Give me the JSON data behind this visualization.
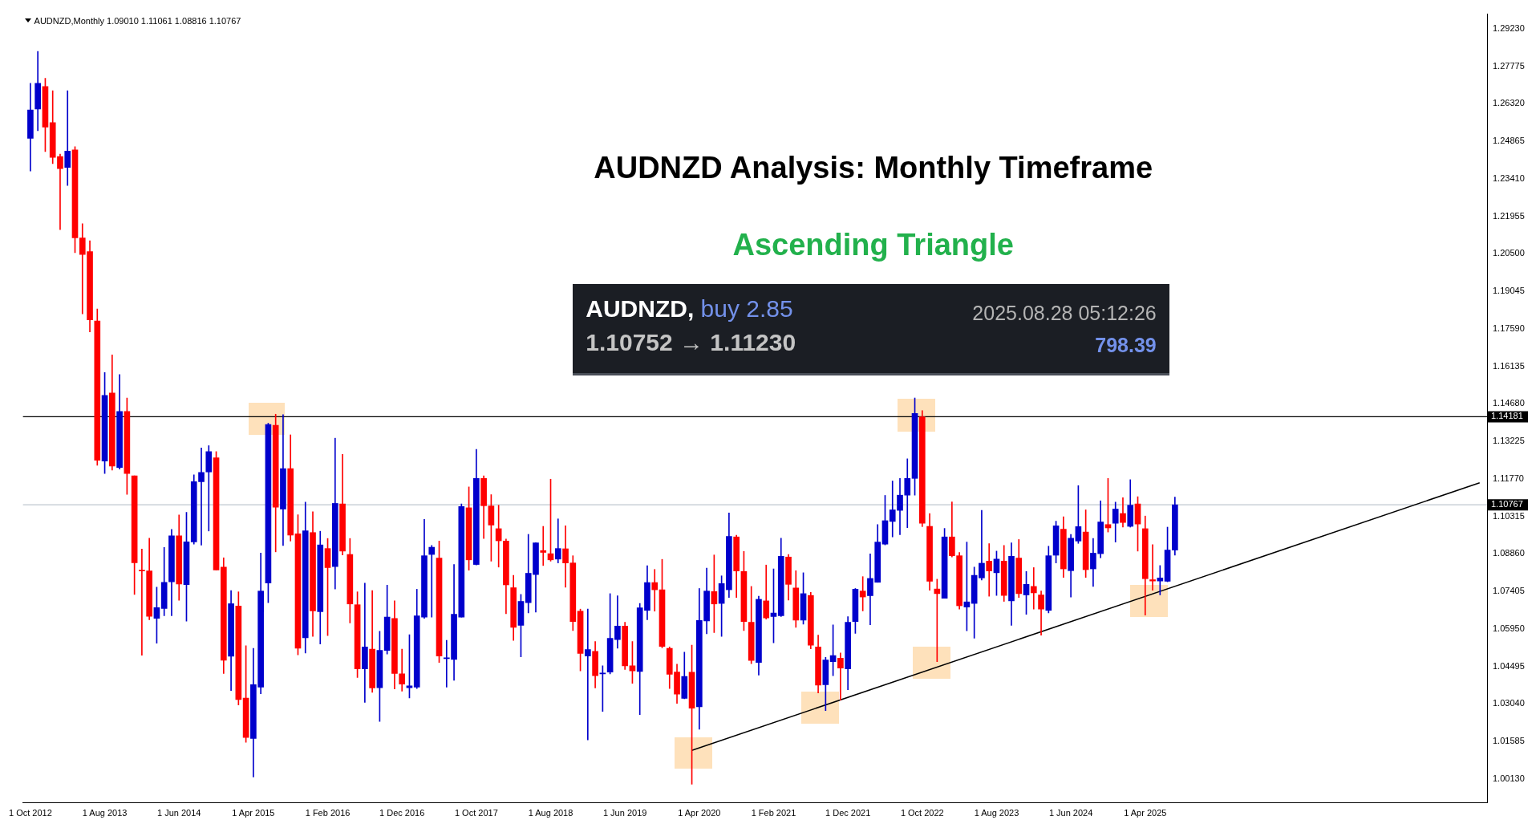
{
  "chart_data": {
    "type": "candlestick",
    "title": "AUDNZD Analysis: Monthly Timeframe",
    "subtitle": "Ascending Triangle",
    "annotations": [
      "AUDNZD,Monthly 1.09010 1.11061 1.08816 1.10767",
      "AUDNZD,",
      "buy 2.85",
      "1.10752 → 1.11230",
      "2025.08.28 05:12:26",
      "798.39"
    ],
    "colors": [
      "#0000cc",
      "#0000cc",
      "#ff0000",
      "#ff0000",
      "#ff0000",
      "#0000cc",
      "#ff0000",
      "#ff0000",
      "#ff0000",
      "#ff0000",
      "#0000cc",
      "#ff0000",
      "#0000cc",
      "#ff0000",
      "#ff0000",
      "#ff0000",
      "#ff0000",
      "#0000cc",
      "#0000cc",
      "#0000cc",
      "#ff0000",
      "#0000cc",
      "#0000cc",
      "#0000cc",
      "#0000cc",
      "#ff0000",
      "#ff0000",
      "#0000cc",
      "#ff0000",
      "#ff0000",
      "#0000cc",
      "#0000cc",
      "#0000cc",
      "#ff0000",
      "#0000cc",
      "#ff0000",
      "#ff0000",
      "#0000cc",
      "#ff0000",
      "#0000cc",
      "#ff0000",
      "#0000cc",
      "#ff0000",
      "#ff0000",
      "#ff0000",
      "#0000cc",
      "#ff0000",
      "#0000cc",
      "#0000cc",
      "#ff0000",
      "#ff0000",
      "#0000cc",
      "#0000cc",
      "#0000cc",
      "#0000cc",
      "#ff0000",
      "#0000cc",
      "#0000cc",
      "#0000cc",
      "#ff0000",
      "#0000cc",
      "#ff0000",
      "#ff0000",
      "#ff0000",
      "#ff0000",
      "#ff0000",
      "#0000cc",
      "#0000cc",
      "#0000cc",
      "#ff0000",
      "#ff0000",
      "#0000cc",
      "#ff0000",
      "#ff0000",
      "#ff0000",
      "#0000cc",
      "#ff0000",
      "#0000cc",
      "#0000cc",
      "#0000cc",
      "#ff0000",
      "#ff0000",
      "#0000cc",
      "#0000cc",
      "#ff0000",
      "#ff0000",
      "#ff0000",
      "#ff0000",
      "#0000cc",
      "#ff0000",
      "#0000cc",
      "#0000cc",
      "#ff0000",
      "#0000cc",
      "#0000cc",
      "#ff0000",
      "#ff0000",
      "#ff0000",
      "#0000cc",
      "#ff0000",
      "#0000cc",
      "#0000cc",
      "#ff0000",
      "#ff0000",
      "#0000cc",
      "#ff0000",
      "#ff0000",
      "#0000cc",
      "#0000cc",
      "#ff0000",
      "#0000cc",
      "#0000cc",
      "#ff0000",
      "#0000cc",
      "#0000cc",
      "#0000cc",
      "#0000cc",
      "#0000cc",
      "#0000cc",
      "#0000cc",
      "#ff0000",
      "#ff0000",
      "#ff0000",
      "#0000cc",
      "#ff0000",
      "#ff0000",
      "#0000cc",
      "#0000cc",
      "#0000cc",
      "#ff0000",
      "#0000cc",
      "#ff0000",
      "#0000cc",
      "#ff0000",
      "#0000cc",
      "#ff0000",
      "#ff0000",
      "#0000cc",
      "#0000cc",
      "#ff0000",
      "#0000cc",
      "#0000cc",
      "#ff0000",
      "#0000cc",
      "#0000cc",
      "#ff0000",
      "#0000cc",
      "#ff0000",
      "#0000cc",
      "#ff0000",
      "#ff0000",
      "#ff0000",
      "#0000cc",
      "#0000cc",
      "#0000cc"
    ],
    "x": [
      "2012-10",
      "2012-11",
      "2012-12",
      "2013-01",
      "2013-02",
      "2013-03",
      "2013-04",
      "2013-05",
      "2013-06",
      "2013-07",
      "2013-08",
      "2013-09",
      "2013-10",
      "2013-11",
      "2013-12",
      "2014-01",
      "2014-02",
      "2014-03",
      "2014-04",
      "2014-05",
      "2014-06",
      "2014-07",
      "2014-08",
      "2014-09",
      "2014-10",
      "2014-11",
      "2014-12",
      "2015-01",
      "2015-02",
      "2015-03",
      "2015-04",
      "2015-05",
      "2015-06",
      "2015-07",
      "2015-08",
      "2015-09",
      "2015-10",
      "2015-11",
      "2015-12",
      "2016-01",
      "2016-02",
      "2016-03",
      "2016-04",
      "2016-05",
      "2016-06",
      "2016-07",
      "2016-08",
      "2016-09",
      "2016-10",
      "2016-11",
      "2016-12",
      "2017-01",
      "2017-02",
      "2017-03",
      "2017-04",
      "2017-05",
      "2017-06",
      "2017-07",
      "2017-08",
      "2017-09",
      "2017-10",
      "2017-11",
      "2017-12",
      "2018-01",
      "2018-02",
      "2018-03",
      "2018-04",
      "2018-05",
      "2018-06",
      "2018-07",
      "2018-08",
      "2018-09",
      "2018-10",
      "2018-11",
      "2018-12",
      "2019-01",
      "2019-02",
      "2019-03",
      "2019-04",
      "2019-05",
      "2019-06",
      "2019-07",
      "2019-08",
      "2019-09",
      "2019-10",
      "2019-11",
      "2019-12",
      "2020-01",
      "2020-02",
      "2020-03",
      "2020-04",
      "2020-05",
      "2020-06",
      "2020-07",
      "2020-08",
      "2020-09",
      "2020-10",
      "2020-11",
      "2020-12",
      "2021-01",
      "2021-02",
      "2021-03",
      "2021-04",
      "2021-05",
      "2021-06",
      "2021-07",
      "2021-08",
      "2021-09",
      "2021-10",
      "2021-11",
      "2021-12",
      "2022-01",
      "2022-02",
      "2022-03",
      "2022-04",
      "2022-05",
      "2022-06",
      "2022-07",
      "2022-08",
      "2022-09",
      "2022-10",
      "2022-11",
      "2022-12",
      "2023-01",
      "2023-02",
      "2023-03",
      "2023-04",
      "2023-05",
      "2023-06",
      "2023-07",
      "2023-08",
      "2023-09",
      "2023-10",
      "2023-11",
      "2023-12",
      "2024-01",
      "2024-02",
      "2024-03",
      "2024-04",
      "2024-05",
      "2024-06",
      "2024-07",
      "2024-08",
      "2024-09",
      "2024-10",
      "2024-11",
      "2024-12",
      "2025-01",
      "2025-02",
      "2025-03",
      "2025-04",
      "2025-05",
      "2025-06",
      "2025-07",
      "2025-08"
    ],
    "ohlc": [
      [
        1.2498,
        1.2712,
        1.2371,
        1.2608
      ],
      [
        1.2612,
        1.2835,
        1.2528,
        1.2712
      ],
      [
        1.2699,
        1.2731,
        1.2447,
        1.2542
      ],
      [
        1.2559,
        1.2683,
        1.24,
        1.2424
      ],
      [
        1.2428,
        1.2437,
        1.2144,
        1.2381
      ],
      [
        1.2385,
        1.2683,
        1.2315,
        1.2449
      ],
      [
        1.2453,
        1.2466,
        1.2055,
        1.2112
      ],
      [
        1.2112,
        1.2167,
        1.1817,
        1.2048
      ],
      [
        1.2059,
        1.2101,
        1.1747,
        1.1794
      ],
      [
        1.179,
        1.1836,
        1.123,
        1.1249
      ],
      [
        1.1246,
        1.159,
        1.1198,
        1.1501
      ],
      [
        1.151,
        1.1658,
        1.1211,
        1.1227
      ],
      [
        1.1221,
        1.1582,
        1.1215,
        1.1439
      ],
      [
        1.1439,
        1.1491,
        1.1117,
        1.1198
      ],
      [
        1.1189,
        1.1189,
        1.0729,
        1.0852
      ],
      [
        1.082,
        1.0905,
        1.0493,
        1.082
      ],
      [
        1.082,
        1.0947,
        1.0631,
        1.0644
      ],
      [
        1.0636,
        1.0757,
        1.054,
        1.0678
      ],
      [
        1.0674,
        1.0911,
        1.0646,
        1.0776
      ],
      [
        1.0778,
        1.0981,
        1.0646,
        1.0956
      ],
      [
        1.0956,
        1.1037,
        1.0706,
        1.0769
      ],
      [
        1.0767,
        1.1047,
        1.0625,
        1.0933
      ],
      [
        1.0933,
        1.1193,
        1.0924,
        1.1166
      ],
      [
        1.1166,
        1.1297,
        1.092,
        1.1202
      ],
      [
        1.1204,
        1.1306,
        1.0975,
        1.1283
      ],
      [
        1.1259,
        1.1283,
        1.0824,
        1.0824
      ],
      [
        1.0835,
        1.0871,
        1.0422,
        1.0474
      ],
      [
        1.0489,
        1.0744,
        1.0356,
        1.0693
      ],
      [
        1.0684,
        1.0739,
        1.03,
        1.0321
      ],
      [
        1.0327,
        1.053,
        1.0155,
        1.0174
      ],
      [
        1.017,
        1.052,
        1.0021,
        1.0379
      ],
      [
        1.0369,
        1.0889,
        1.0344,
        1.0742
      ],
      [
        1.0773,
        1.1393,
        1.0697,
        1.1388
      ],
      [
        1.1385,
        1.1428,
        1.0894,
        1.1067
      ],
      [
        1.106,
        1.1426,
        1.0919,
        1.1217
      ],
      [
        1.1217,
        1.1348,
        1.0936,
        1.0959
      ],
      [
        1.0964,
        1.1038,
        1.0495,
        1.052
      ],
      [
        1.0561,
        1.1087,
        1.0502,
        1.0976
      ],
      [
        1.0969,
        1.105,
        1.0566,
        1.0665
      ],
      [
        1.0662,
        1.0974,
        1.0537,
        1.0921
      ],
      [
        1.0907,
        1.0946,
        1.0569,
        1.0833
      ],
      [
        1.0837,
        1.1335,
        1.075,
        1.1082
      ],
      [
        1.108,
        1.1272,
        1.0882,
        1.0897
      ],
      [
        1.0884,
        1.0946,
        1.0618,
        1.0692
      ],
      [
        1.0689,
        1.0739,
        1.0407,
        1.044
      ],
      [
        1.044,
        1.0773,
        1.031,
        1.0525
      ],
      [
        1.0517,
        1.0744,
        1.0349,
        1.0366
      ],
      [
        1.0367,
        1.0586,
        1.0236,
        1.0512
      ],
      [
        1.0512,
        1.0765,
        1.0498,
        1.0641
      ],
      [
        1.0636,
        1.0704,
        1.0362,
        1.0422
      ],
      [
        1.0421,
        1.0517,
        1.0354,
        1.0381
      ],
      [
        1.0367,
        1.0573,
        1.0327,
        1.0374
      ],
      [
        1.0369,
        1.0749,
        1.0364,
        1.0646
      ],
      [
        1.0641,
        1.102,
        1.0636,
        1.0879
      ],
      [
        1.0884,
        1.0919,
        1.0641,
        1.0912
      ],
      [
        1.087,
        1.0936,
        1.0465,
        1.049
      ],
      [
        1.048,
        1.0551,
        1.0369,
        1.0482
      ],
      [
        1.0477,
        1.0845,
        1.0396,
        1.0652
      ],
      [
        1.0641,
        1.108,
        1.0641,
        1.107
      ],
      [
        1.1065,
        1.1146,
        1.0823,
        1.0863
      ],
      [
        1.0845,
        1.1292,
        1.0843,
        1.1179
      ],
      [
        1.1179,
        1.1189,
        1.0946,
        1.1073
      ],
      [
        1.1072,
        1.1116,
        1.0858,
        1.0998
      ],
      [
        1.0984,
        1.1075,
        1.0835,
        1.0937
      ],
      [
        1.0936,
        1.0944,
        1.0654,
        1.0766
      ],
      [
        1.0755,
        1.0803,
        1.0551,
        1.0601
      ],
      [
        1.0609,
        1.0729,
        1.0487,
        1.0702
      ],
      [
        1.0697,
        1.0962,
        1.0657,
        1.0811
      ],
      [
        1.0806,
        1.0929,
        1.066,
        1.0929
      ],
      [
        1.0899,
        1.0993,
        1.0841,
        1.0892
      ],
      [
        1.0887,
        1.1176,
        1.0858,
        1.0863
      ],
      [
        1.0866,
        1.1022,
        1.0851,
        1.0907
      ],
      [
        1.0906,
        1.0995,
        1.0757,
        1.0851
      ],
      [
        1.0851,
        1.0879,
        1.0589,
        1.0624
      ],
      [
        1.0664,
        1.0672,
        1.0432,
        1.05
      ],
      [
        1.049,
        1.0672,
        1.0165,
        1.0515
      ],
      [
        1.0508,
        1.0546,
        1.0366,
        1.0414
      ],
      [
        1.0421,
        1.0452,
        1.0275,
        1.0423
      ],
      [
        1.0428,
        1.0732,
        1.0421,
        1.0559
      ],
      [
        1.0554,
        1.0724,
        1.052,
        1.0606
      ],
      [
        1.0606,
        1.0621,
        1.0438,
        1.0452
      ],
      [
        1.0452,
        1.0546,
        1.0384,
        1.0432
      ],
      [
        1.043,
        1.0694,
        1.0263,
        1.0677
      ],
      [
        1.0667,
        1.084,
        1.0631,
        1.0775
      ],
      [
        1.0775,
        1.0826,
        1.0664,
        1.0747
      ],
      [
        1.0747,
        1.0865,
        1.0522,
        1.0527
      ],
      [
        1.052,
        1.0525,
        1.0364,
        1.0419
      ],
      [
        1.0428,
        1.0458,
        1.0306,
        1.0342
      ],
      [
        1.0326,
        1.0505,
        1.0324,
        1.0411
      ],
      [
        1.0427,
        1.0532,
        0.9993,
        1.0288
      ],
      [
        1.0293,
        1.0752,
        1.0206,
        1.0628
      ],
      [
        1.0626,
        1.0831,
        1.0576,
        1.0742
      ],
      [
        1.074,
        1.0882,
        1.0581,
        1.0692
      ],
      [
        1.0694,
        1.0801,
        1.0566,
        1.0771
      ],
      [
        1.0747,
        1.1045,
        1.0717,
        1.0954
      ],
      [
        1.0952,
        1.0959,
        1.0717,
        1.082
      ],
      [
        1.0818,
        1.0896,
        1.0589,
        1.0624
      ],
      [
        1.0621,
        1.076,
        1.046,
        1.0473
      ],
      [
        1.0465,
        1.0722,
        1.0416,
        1.071
      ],
      [
        1.0704,
        1.0843,
        1.0633,
        1.0638
      ],
      [
        1.0643,
        1.0828,
        1.0541,
        1.0657
      ],
      [
        1.0646,
        1.0947,
        1.0643,
        1.0877
      ],
      [
        1.0874,
        1.0884,
        1.0707,
        1.0768
      ],
      [
        1.0754,
        1.0821,
        1.0601,
        1.0629
      ],
      [
        1.0629,
        1.0813,
        1.0614,
        1.0732
      ],
      [
        1.0725,
        1.0737,
        1.0518,
        1.0532
      ],
      [
        1.0525,
        1.0571,
        1.0347,
        1.0377
      ],
      [
        1.0379,
        1.0485,
        1.0278,
        1.0475
      ],
      [
        1.0468,
        1.0611,
        1.0414,
        1.0492
      ],
      [
        1.0482,
        1.0502,
        1.0319,
        1.0443
      ],
      [
        1.044,
        1.0643,
        1.0359,
        1.0621
      ],
      [
        1.0624,
        1.0752,
        1.0578,
        1.0749
      ],
      [
        1.0742,
        1.0798,
        1.0665,
        1.0719
      ],
      [
        1.0724,
        1.0886,
        1.0611,
        1.0791
      ],
      [
        1.0776,
        1.1,
        1.0776,
        1.0932
      ],
      [
        1.0924,
        1.1113,
        1.0921,
        1.1015
      ],
      [
        1.1012,
        1.1169,
        1.0952,
        1.1057
      ],
      [
        1.1055,
        1.1179,
        1.0961,
        1.1114
      ],
      [
        1.1114,
        1.1255,
        1.0988,
        1.1179
      ],
      [
        1.1179,
        1.1491,
        1.1114,
        1.1431
      ],
      [
        1.1418,
        1.1442,
        1.0992,
        1.1005
      ],
      [
        1.0993,
        1.1043,
        1.0745,
        1.078
      ],
      [
        1.075,
        1.0788,
        1.0468,
        1.0732
      ],
      [
        1.0714,
        1.0985,
        1.0714,
        1.0952
      ],
      [
        1.0952,
        1.1088,
        1.0874,
        1.0879
      ],
      [
        1.0879,
        1.0892,
        1.0672,
        1.0685
      ],
      [
        1.068,
        1.0932,
        1.0588,
        1.07
      ],
      [
        1.0694,
        1.0835,
        1.0559,
        1.0803
      ],
      [
        1.0793,
        1.1055,
        1.0785,
        1.085
      ],
      [
        1.0858,
        1.0926,
        1.0722,
        1.082
      ],
      [
        1.0813,
        1.0897,
        1.0725,
        1.0866
      ],
      [
        1.0858,
        1.0919,
        1.0702,
        1.0725
      ],
      [
        1.0704,
        1.0929,
        1.0609,
        1.0877
      ],
      [
        1.087,
        1.0942,
        1.0717,
        1.0732
      ],
      [
        1.0727,
        1.0818,
        1.0652,
        1.0768
      ],
      [
        1.076,
        1.0833,
        1.0672,
        1.0735
      ],
      [
        1.0727,
        1.0742,
        1.0571,
        1.0672
      ],
      [
        1.0667,
        1.0916,
        1.0657,
        1.0879
      ],
      [
        1.0881,
        1.1013,
        1.0851,
        1.0995
      ],
      [
        1.0982,
        1.103,
        1.0795,
        1.0828
      ],
      [
        1.0821,
        1.0962,
        1.0719,
        1.0947
      ],
      [
        1.0936,
        1.1151,
        1.0927,
        1.0992
      ],
      [
        1.0971,
        1.1057,
        1.0795,
        1.0825
      ],
      [
        1.0828,
        1.0946,
        1.076,
        1.0889
      ],
      [
        1.0887,
        1.1092,
        1.0871,
        1.101
      ],
      [
        1.1,
        1.1179,
        1.0971,
        1.0987
      ],
      [
        1.1005,
        1.1087,
        1.0932,
        1.106
      ],
      [
        1.1043,
        1.1104,
        1.099,
        1.1008
      ],
      [
        1.0993,
        1.1174,
        1.099,
        1.1075
      ],
      [
        1.108,
        1.1108,
        1.0897,
        1.1002
      ],
      [
        1.0984,
        1.1033,
        1.0649,
        1.079
      ],
      [
        1.0786,
        1.0922,
        1.0745,
        1.0781
      ],
      [
        1.0781,
        1.0841,
        1.0727,
        1.0793
      ],
      [
        1.078,
        1.099,
        1.0778,
        1.0901
      ],
      [
        1.0901,
        1.11061,
        1.08816,
        1.10767
      ]
    ],
    "series": [
      {
        "type": "line",
        "color": "#000000",
        "x": [
          "2020-03",
          "2029-01"
        ],
        "values": [
          1.0124,
          1.1162
        ]
      }
    ],
    "ref_lines": [
      {
        "axis": "y",
        "value": 1.14181,
        "label": "1.14181",
        "color": "#000000"
      },
      {
        "axis": "y",
        "value": 1.10767,
        "label": "1.10767",
        "color": "#c0c8d0"
      }
    ],
    "xlim": [
      "2012-09",
      "2029-02"
    ],
    "xticks": [
      {
        "value": "2012-10",
        "label": "1 Oct 2012"
      },
      {
        "value": "2013-08",
        "label": "1 Aug 2013"
      },
      {
        "value": "2014-06",
        "label": "1 Jun 2014"
      },
      {
        "value": "2015-04",
        "label": "1 Apr 2015"
      },
      {
        "value": "2016-02",
        "label": "1 Feb 2016"
      },
      {
        "value": "2016-12",
        "label": "1 Dec 2016"
      },
      {
        "value": "2017-10",
        "label": "1 Oct 2017"
      },
      {
        "value": "2018-08",
        "label": "1 Aug 2018"
      },
      {
        "value": "2019-06",
        "label": "1 Jun 2019"
      },
      {
        "value": "2020-04",
        "label": "1 Apr 2020"
      },
      {
        "value": "2021-02",
        "label": "1 Feb 2021"
      },
      {
        "value": "2021-12",
        "label": "1 Dec 2021"
      },
      {
        "value": "2022-10",
        "label": "1 Oct 2022"
      },
      {
        "value": "2023-08",
        "label": "1 Aug 2023"
      },
      {
        "value": "2024-06",
        "label": "1 Jun 2024"
      },
      {
        "value": "2025-04",
        "label": "1 Apr 2025"
      }
    ],
    "ylim": [
      0.992,
      1.298
    ],
    "yticks": [
      {
        "value": 1.2923,
        "label": "1.29230"
      },
      1.27775,
      {
        "value": 1.2632,
        "label": "1.26320"
      },
      1.24865,
      {
        "value": 1.2341,
        "label": "1.23410"
      },
      1.21955,
      {
        "value": 1.205,
        "label": "1.20500"
      },
      1.19045,
      {
        "value": 1.1759,
        "label": "1.17590"
      },
      1.16135,
      {
        "value": 1.1468,
        "label": "1.14680"
      },
      1.13225,
      {
        "value": 1.1177,
        "label": "1.11770"
      },
      1.10315,
      {
        "value": 1.0886,
        "label": "1.08860"
      },
      1.07405,
      {
        "value": 1.0595,
        "label": "1.05950"
      },
      1.04495,
      {
        "value": 1.0304,
        "label": "1.03040"
      },
      1.01585,
      {
        "value": 1.0013,
        "label": "1.00130"
      }
    ],
    "grid": false,
    "legend": false
  }
}
